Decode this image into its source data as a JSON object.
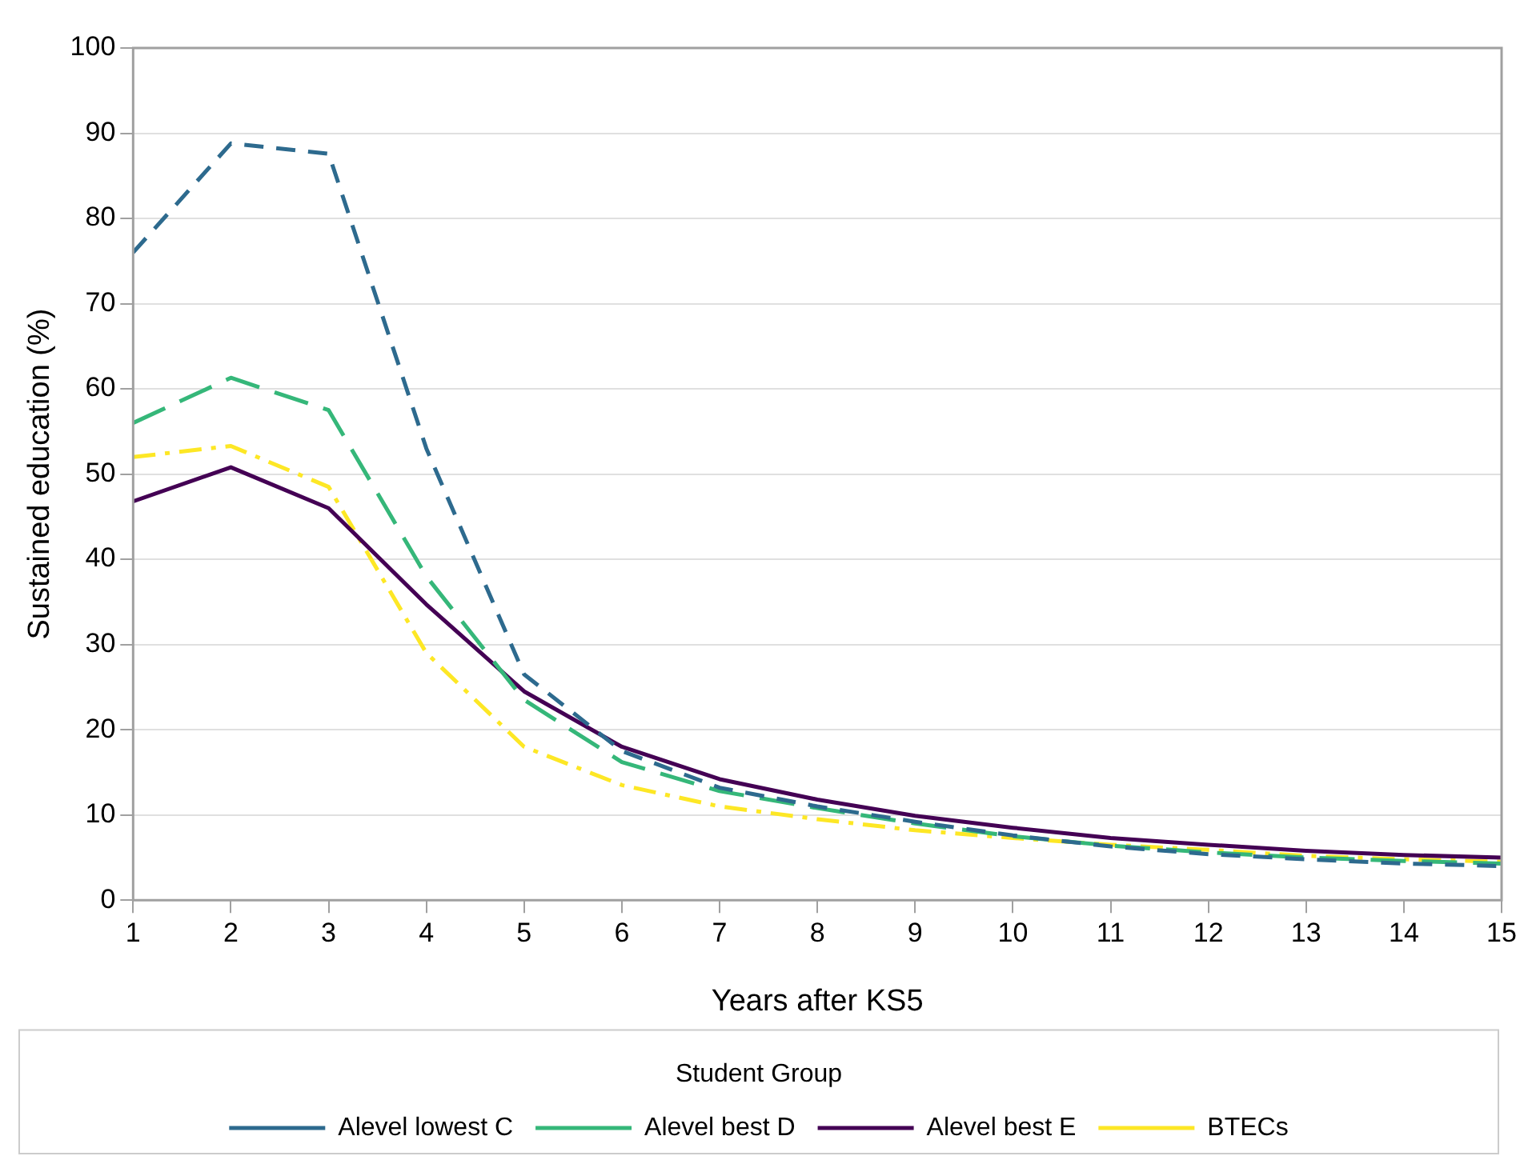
{
  "chart_data": {
    "type": "line",
    "xlabel": "Years after KS5",
    "ylabel": "Sustained education (%)",
    "legend_title": "Student Group",
    "legend": "bottom",
    "grid": "y",
    "marker": "none",
    "x": [
      1,
      2,
      3,
      4,
      5,
      6,
      7,
      8,
      9,
      10,
      11,
      12,
      13,
      14,
      15
    ],
    "xlim": [
      1,
      15
    ],
    "xticks": [
      1,
      2,
      3,
      4,
      5,
      6,
      7,
      8,
      9,
      10,
      11,
      12,
      13,
      14,
      15
    ],
    "ylim": [
      0,
      100
    ],
    "yticks": [
      0,
      10,
      20,
      30,
      40,
      50,
      60,
      70,
      80,
      90,
      100
    ],
    "series": [
      {
        "name": "Alevel lowest C",
        "color": "#2d6a8e",
        "line_style": "dashed",
        "values": [
          76,
          88.8,
          87.6,
          53,
          26.5,
          17.5,
          13.2,
          11,
          9.2,
          7.6,
          6.3,
          5.4,
          4.8,
          4.3,
          4.0
        ]
      },
      {
        "name": "Alevel best D",
        "color": "#35b779",
        "line_style": "longdash",
        "values": [
          56,
          61.3,
          57.5,
          38,
          23.5,
          16.2,
          12.8,
          10.8,
          9,
          7.5,
          6.4,
          5.6,
          5,
          4.6,
          4.3
        ]
      },
      {
        "name": "Alevel best E",
        "color": "#440154",
        "line_style": "solid",
        "values": [
          46.8,
          50.8,
          46,
          34.7,
          24.5,
          18,
          14.2,
          11.8,
          9.9,
          8.5,
          7.3,
          6.5,
          5.8,
          5.3,
          5.0
        ]
      },
      {
        "name": "BTECs",
        "color": "#fde725",
        "line_style": "dashdot",
        "values": [
          52,
          53.3,
          48.5,
          29,
          18,
          13.5,
          11,
          9.5,
          8.2,
          7.3,
          6.5,
          5.9,
          5.2,
          4.8,
          4.5
        ]
      }
    ]
  }
}
